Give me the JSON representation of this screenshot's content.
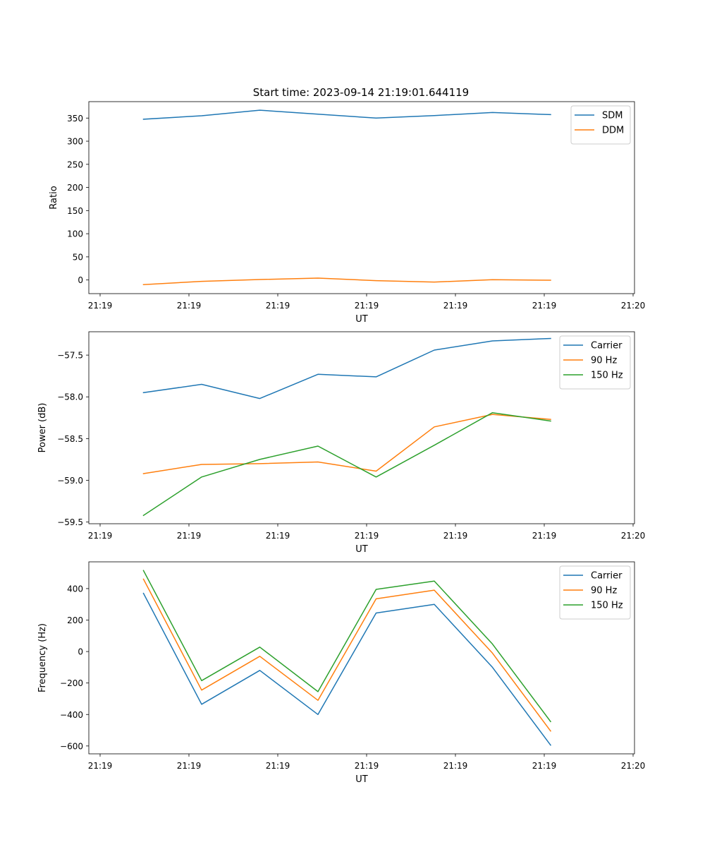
{
  "figure": {
    "title": "Start time: 2023-09-14 21:19:01.644119"
  },
  "chart_data": [
    {
      "type": "line",
      "title": "Start time: 2023-09-14 21:19:01.644119",
      "xlabel": "UT",
      "ylabel": "Ratio",
      "x_ticks": [
        "21:19",
        "21:19",
        "21:19",
        "21:19",
        "21:19",
        "21:19",
        "21:20"
      ],
      "y_ticks": [
        0,
        50,
        100,
        150,
        200,
        250,
        300,
        350
      ],
      "ylim": [
        -29.5,
        385.5
      ],
      "legend_position": "top-right",
      "series": [
        {
          "name": "SDM",
          "color": "#1f77b4",
          "values": [
            347.5,
            355,
            367,
            358.5,
            350,
            355.5,
            362,
            357.5
          ]
        },
        {
          "name": "DDM",
          "color": "#ff7f0e",
          "values": [
            -10,
            -3,
            1,
            4,
            -1.5,
            -4.5,
            0.5,
            -0.5
          ]
        }
      ]
    },
    {
      "type": "line",
      "title": "",
      "xlabel": "UT",
      "ylabel": "Power (dB)",
      "x_ticks": [
        "21:19",
        "21:19",
        "21:19",
        "21:19",
        "21:19",
        "21:19",
        "21:20"
      ],
      "y_ticks": [
        -57.5,
        -58.0,
        -58.5,
        -59.0,
        -59.5
      ],
      "ylim": [
        -59.52,
        -57.22
      ],
      "legend_position": "top-right",
      "series": [
        {
          "name": "Carrier",
          "color": "#1f77b4",
          "values": [
            -57.95,
            -57.85,
            -58.02,
            -57.73,
            -57.76,
            -57.44,
            -57.33,
            -57.3
          ]
        },
        {
          "name": "90 Hz",
          "color": "#ff7f0e",
          "values": [
            -58.92,
            -58.81,
            -58.8,
            -58.78,
            -58.89,
            -58.36,
            -58.21,
            -58.27
          ]
        },
        {
          "name": "150 Hz",
          "color": "#2ca02c",
          "values": [
            -59.42,
            -58.96,
            -58.75,
            -58.59,
            -58.96,
            -58.58,
            -58.19,
            -58.29
          ]
        }
      ]
    },
    {
      "type": "line",
      "title": "",
      "xlabel": "UT",
      "ylabel": "Frequency (Hz)",
      "x_ticks": [
        "21:19",
        "21:19",
        "21:19",
        "21:19",
        "21:19",
        "21:19",
        "21:20"
      ],
      "y_ticks": [
        400,
        200,
        0,
        -200,
        -400,
        -600
      ],
      "ylim": [
        -650,
        570
      ],
      "legend_position": "top-right",
      "series": [
        {
          "name": "Carrier",
          "color": "#1f77b4",
          "values": [
            370,
            -335,
            -120,
            -400,
            245,
            300,
            -100,
            -595
          ]
        },
        {
          "name": "90 Hz",
          "color": "#ff7f0e",
          "values": [
            460,
            -245,
            -30,
            -310,
            335,
            390,
            -10,
            -505
          ]
        },
        {
          "name": "150 Hz",
          "color": "#2ca02c",
          "values": [
            515,
            -185,
            28,
            -255,
            395,
            448,
            48,
            -445
          ]
        }
      ]
    }
  ]
}
